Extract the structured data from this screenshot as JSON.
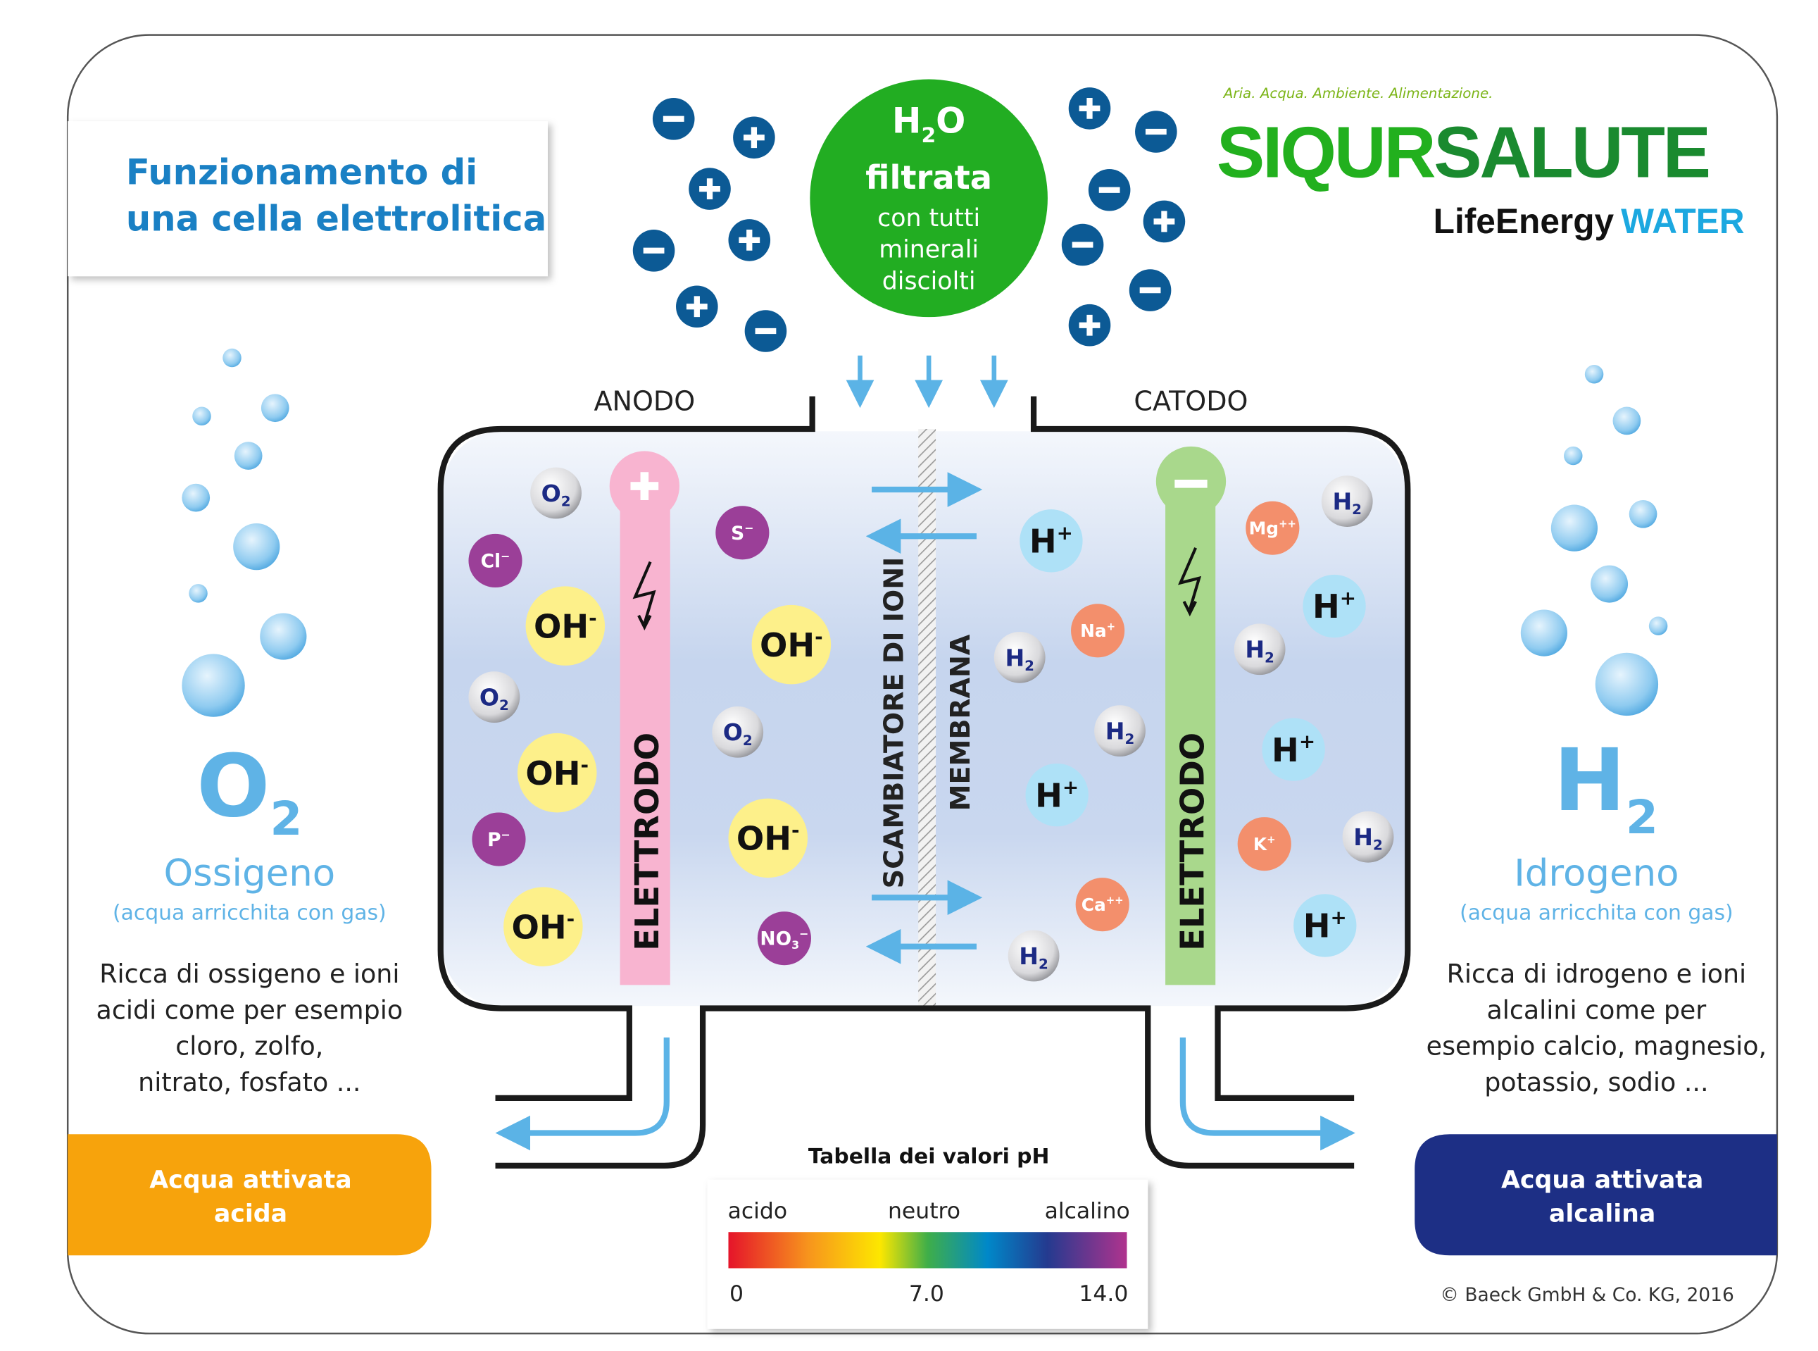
{
  "title": {
    "line1": "Funzionamento di",
    "line2": "una cella elettrolitica"
  },
  "logo": {
    "tagline": "Aria. Acqua. Ambiente. Alimentazione.",
    "brand1": "SIQUR",
    "brand2": "SALUTE",
    "sub1": "LifeEnergy",
    "sub2": "WATER"
  },
  "water": {
    "h": "H",
    "sub": "2",
    "o": "O",
    "line1": "filtrata",
    "line2": "con tutti",
    "line3": "minerali",
    "line4": "disciolti"
  },
  "ions_left": [
    "minus-icon",
    "plus-icon",
    "plus-icon",
    "plus-icon",
    "minus-icon",
    "plus-icon",
    "minus-icon"
  ],
  "ions_right": [
    "plus-icon",
    "minus-icon",
    "minus-icon",
    "plus-icon",
    "minus-icon",
    "minus-icon",
    "plus-icon"
  ],
  "labels": {
    "anode": "ANODO",
    "cathode": "CATODO",
    "exchanger": "SCAMBIATORE DI IONI",
    "membrane": "MEMBRANA",
    "electrode_left": "ELETTRODO",
    "electrode_right": "ELETTRODO"
  },
  "molecules_anode": [
    {
      "base": "O",
      "sub": "2",
      "sup": "",
      "kind": "gas"
    },
    {
      "base": "Cl",
      "sub": "",
      "sup": "−",
      "kind": "anion"
    },
    {
      "base": "OH",
      "sub": "",
      "sup": "-",
      "kind": "hydroxide"
    },
    {
      "base": "O",
      "sub": "2",
      "sup": "",
      "kind": "gas"
    },
    {
      "base": "OH",
      "sub": "",
      "sup": "-",
      "kind": "hydroxide"
    },
    {
      "base": "P",
      "sub": "",
      "sup": "−",
      "kind": "anion"
    },
    {
      "base": "OH",
      "sub": "",
      "sup": "-",
      "kind": "hydroxide"
    },
    {
      "base": "S",
      "sub": "",
      "sup": "−",
      "kind": "anion"
    },
    {
      "base": "OH",
      "sub": "",
      "sup": "-",
      "kind": "hydroxide"
    },
    {
      "base": "O",
      "sub": "2",
      "sup": "",
      "kind": "gas"
    },
    {
      "base": "OH",
      "sub": "",
      "sup": "-",
      "kind": "hydroxide"
    },
    {
      "base": "NO",
      "sub": "3",
      "sup": "−",
      "kind": "anion"
    }
  ],
  "molecules_cathode": [
    {
      "base": "H",
      "sub": "",
      "sup": "+",
      "kind": "proton"
    },
    {
      "base": "Na",
      "sub": "",
      "sup": "+",
      "kind": "cation"
    },
    {
      "base": "H",
      "sub": "2",
      "sup": "",
      "kind": "gas"
    },
    {
      "base": "H",
      "sub": "2",
      "sup": "",
      "kind": "gas"
    },
    {
      "base": "H",
      "sub": "",
      "sup": "+",
      "kind": "proton"
    },
    {
      "base": "Ca",
      "sub": "",
      "sup": "++",
      "kind": "cation"
    },
    {
      "base": "H",
      "sub": "2",
      "sup": "",
      "kind": "gas"
    },
    {
      "base": "Mg",
      "sub": "",
      "sup": "++",
      "kind": "cation"
    },
    {
      "base": "H",
      "sub": "2",
      "sup": "",
      "kind": "gas"
    },
    {
      "base": "H",
      "sub": "",
      "sup": "+",
      "kind": "proton"
    },
    {
      "base": "H",
      "sub": "2",
      "sup": "",
      "kind": "gas"
    },
    {
      "base": "H",
      "sub": "",
      "sup": "+",
      "kind": "proton"
    },
    {
      "base": "K",
      "sub": "",
      "sup": "+",
      "kind": "cation"
    },
    {
      "base": "H",
      "sub": "2",
      "sup": "",
      "kind": "gas"
    },
    {
      "base": "H",
      "sub": "",
      "sup": "+",
      "kind": "proton"
    }
  ],
  "left_panel": {
    "symbol": "O",
    "symbol_sub": "2",
    "name": "Ossigeno",
    "note": "(acqua arricchita con gas)",
    "desc": [
      "Ricca di ossigeno e ioni",
      "acidi come per esempio",
      "cloro, zolfo,",
      "nitrato, fosfato ..."
    ],
    "output_line1": "Acqua attivata",
    "output_line2": "acida"
  },
  "right_panel": {
    "symbol": "H",
    "symbol_sub": "2",
    "name": "Idrogeno",
    "note": "(acqua arricchita con gas)",
    "desc": [
      "Ricca di idrogeno e ioni",
      "alcalini come per",
      "esempio calcio, magnesio,",
      "potassio, sodio ..."
    ],
    "output_line1": "Acqua attivata",
    "output_line2": "alcalina"
  },
  "ph_table": {
    "title": "Tabella dei valori pH",
    "acid": "acido",
    "neutral": "neutro",
    "alkaline": "alcalino",
    "min": "0",
    "mid": "7.0",
    "max": "14.0"
  },
  "copyright": "© Baeck GmbH & Co. KG, 2016",
  "colors": {
    "title_blue": "#1a80c4",
    "water_green": "#22ad22",
    "ion_blue": "#0c5a95",
    "acid_orange": "#f7a30c",
    "alkaline_navy": "#1d2f85",
    "arrow_blue": "#5bb3e6",
    "anode_pink": "#f8b4d0",
    "cathode_green": "#a9d88c"
  }
}
